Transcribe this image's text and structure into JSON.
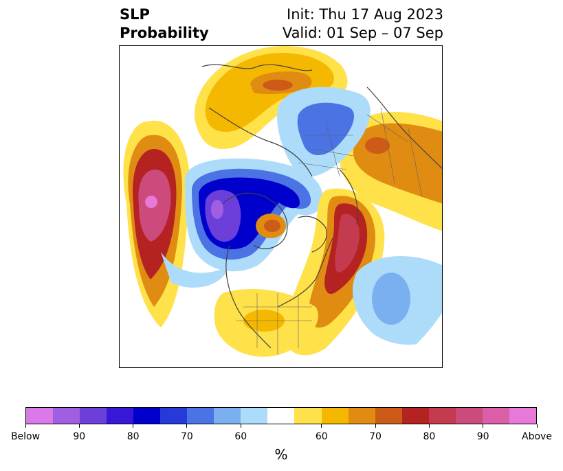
{
  "title": {
    "left_line1": "SLP",
    "left_line2": "Probability",
    "right_line1": "Init: Thu 17 Aug 2023",
    "right_line2": "Valid: 01 Sep – 07 Sep"
  },
  "colorbar": {
    "colors": [
      "#d97ae8",
      "#a25ee0",
      "#6c3fdb",
      "#3718d6",
      "#0000cc",
      "#2639d9",
      "#4b73e3",
      "#7bb0f0",
      "#addcfa",
      "#ffffff",
      "#ffe14a",
      "#f5b800",
      "#e08c12",
      "#cc5b18",
      "#b52222",
      "#c43a4e",
      "#cc4b7c",
      "#db5ea8",
      "#e879d8"
    ],
    "tick_labels": [
      "Below",
      "90",
      "80",
      "70",
      "60",
      "60",
      "70",
      "80",
      "90",
      "Above"
    ],
    "unit": "%"
  },
  "palette": {
    "below_strong": "#a25ee0",
    "below_mid": "#0000cc",
    "below_light": "#addcfa",
    "above_light": "#ffe14a",
    "above_mid": "#e08c12",
    "above_strong": "#b52222",
    "coast": "#404040"
  }
}
